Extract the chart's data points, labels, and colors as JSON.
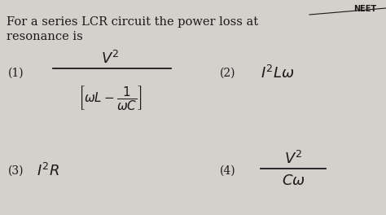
{
  "background_color": "#d4d0cc",
  "text_color": "#1a1a1a",
  "figsize": [
    4.74,
    2.64
  ],
  "dpi": 100,
  "title_line1": "For a series LCR circuit the power loss at",
  "title_line2": "resonance is",
  "title_fontsize": 10.5,
  "option_label_fontsize": 10,
  "math_fontsize": 10,
  "neet_text": "NEET",
  "opt1_label": "(1)",
  "opt2_label": "(2)",
  "opt3_label": "(3)",
  "opt4_label": "(4)",
  "opt2_expr": "$I^2L\\omega$",
  "opt3_expr": "$I^2R$"
}
